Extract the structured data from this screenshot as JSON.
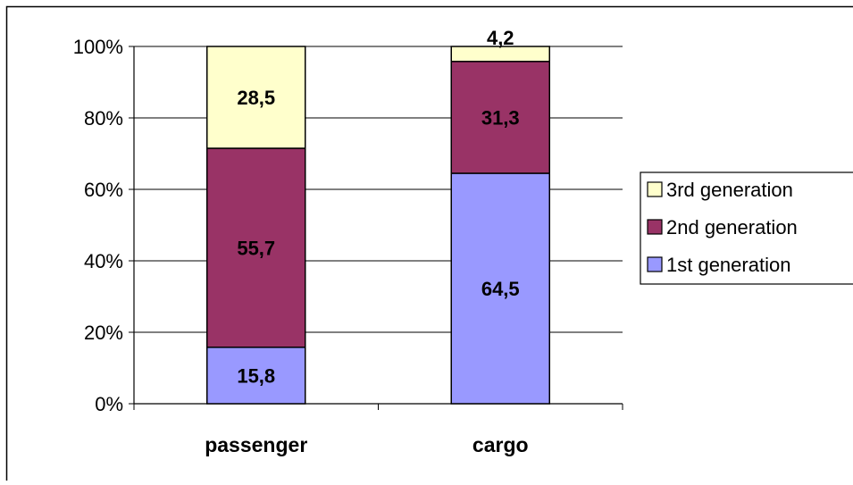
{
  "chart_data": {
    "type": "bar",
    "stacked": true,
    "percent_stacked": true,
    "title": "",
    "xlabel": "",
    "ylabel": "",
    "categories": [
      "passenger",
      "cargo"
    ],
    "series": [
      {
        "name": "1st generation",
        "values": [
          15.8,
          64.5
        ],
        "labels": [
          "15,8",
          "64,5"
        ],
        "color": "#9999FF"
      },
      {
        "name": "2nd generation",
        "values": [
          55.7,
          31.3
        ],
        "labels": [
          "55,7",
          "31,3"
        ],
        "color": "#993366"
      },
      {
        "name": "3rd generation",
        "values": [
          28.5,
          4.2
        ],
        "labels": [
          "28,5",
          "4,2"
        ],
        "color": "#FFFFCC"
      }
    ],
    "ylim": [
      0,
      100
    ],
    "yticks": [
      "0%",
      "20%",
      "40%",
      "60%",
      "80%",
      "100%"
    ],
    "grid": true,
    "legend_position": "right",
    "legend_order": [
      "3rd generation",
      "2nd generation",
      "1st generation"
    ]
  }
}
